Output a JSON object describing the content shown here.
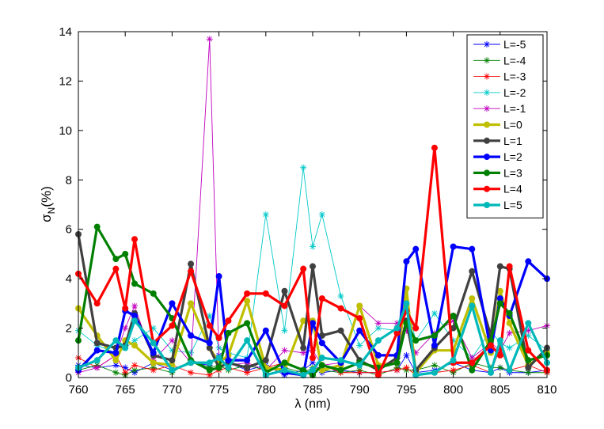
{
  "chart_data": {
    "type": "line",
    "title": "",
    "xlabel": "λ (nm)",
    "ylabel_main": "σ",
    "ylabel_sub": "N",
    "ylabel_tail": "(%)",
    "xlim": [
      760,
      810
    ],
    "ylim": [
      0,
      14
    ],
    "xticks": [
      760,
      765,
      770,
      775,
      780,
      785,
      790,
      795,
      800,
      805,
      810
    ],
    "yticks": [
      0,
      2,
      4,
      6,
      8,
      10,
      12,
      14
    ],
    "grid": false,
    "legend_position": "top-right",
    "x": [
      760,
      762,
      764,
      765,
      766,
      768,
      770,
      772,
      774,
      775,
      776,
      778,
      780,
      782,
      784,
      785,
      786,
      788,
      790,
      792,
      794,
      795,
      796,
      798,
      800,
      802,
      804,
      805,
      806,
      808,
      810
    ],
    "series": [
      {
        "name": "L=-5",
        "color": "#0000ff",
        "style": "thin-star",
        "values": [
          0.5,
          0.4,
          0.5,
          0.4,
          0.2,
          0.6,
          0.3,
          0.6,
          0.5,
          0.9,
          0.6,
          0.3,
          0.5,
          0.1,
          0.3,
          0.6,
          0.2,
          0.3,
          0.2,
          0.2,
          0.3,
          0.9,
          0.2,
          0.3,
          0.6,
          0.3,
          0.2,
          0.4,
          0.2,
          0.2,
          0.3
        ]
      },
      {
        "name": "L=-4",
        "color": "#008000",
        "style": "thin-star",
        "values": [
          0.3,
          0.5,
          0.2,
          0.1,
          0.3,
          0.4,
          0.2,
          0.7,
          0.4,
          0.5,
          0.3,
          0.5,
          0.3,
          0.4,
          0.2,
          0.4,
          0.3,
          0.2,
          0.3,
          0.1,
          0.4,
          0.3,
          0.3,
          0.5,
          0.2,
          0.6,
          0.4,
          0.4,
          0.3,
          0.2,
          0.2
        ]
      },
      {
        "name": "L=-3",
        "color": "#ff0000",
        "style": "thin-star",
        "values": [
          0.8,
          0.4,
          0.9,
          0.2,
          0.5,
          0.3,
          0.5,
          0.2,
          0.1,
          0.3,
          0.4,
          0.2,
          0.4,
          0.6,
          0.3,
          0.1,
          0.5,
          0.2,
          0.2,
          0.2,
          0.3,
          0.4,
          0.1,
          0.2,
          0.3,
          0.5,
          0.2,
          1.2,
          0.3,
          0.5,
          0.2
        ]
      },
      {
        "name": "L=-2",
        "color": "#00c8c8",
        "style": "thin-star",
        "values": [
          1.9,
          1.3,
          1.0,
          1.2,
          1.5,
          2.0,
          1.1,
          1.0,
          2.5,
          1.2,
          1.0,
          0.8,
          6.6,
          1.9,
          8.5,
          5.3,
          6.6,
          3.3,
          1.3,
          2.0,
          1.9,
          3.0,
          1.5,
          2.6,
          1.5,
          0.8,
          1.9,
          1.4,
          1.2,
          1.7,
          1.1
        ]
      },
      {
        "name": "L=-1",
        "color": "#c000c0",
        "style": "thin-star",
        "values": [
          0.2,
          0.4,
          0.9,
          2.0,
          2.9,
          0.7,
          1.5,
          0.6,
          13.7,
          0.7,
          0.5,
          0.6,
          0.3,
          1.1,
          1.0,
          1.1,
          0.5,
          0.6,
          2.9,
          2.2,
          2.2,
          1.9,
          1.0,
          1.8,
          2.3,
          0.8,
          1.4,
          1.1,
          1.8,
          1.9,
          2.1
        ]
      },
      {
        "name": "L=0",
        "color": "#bfbf00",
        "style": "thick-dot",
        "values": [
          2.8,
          1.7,
          0.7,
          1.5,
          1.3,
          0.6,
          0.5,
          3.0,
          1.2,
          0.6,
          0.9,
          3.1,
          0.4,
          0.3,
          2.3,
          2.3,
          0.3,
          0.5,
          2.9,
          0.5,
          0.6,
          3.6,
          0.2,
          1.1,
          1.1,
          3.2,
          1.0,
          3.5,
          2.2,
          0.5,
          1.0
        ]
      },
      {
        "name": "L=1",
        "color": "#404040",
        "style": "thick-dot",
        "values": [
          5.8,
          1.4,
          1.2,
          1.3,
          2.6,
          0.9,
          0.7,
          4.6,
          1.2,
          0.4,
          0.6,
          0.4,
          0.7,
          3.5,
          1.2,
          4.5,
          1.7,
          1.9,
          0.7,
          0.3,
          0.8,
          2.3,
          0.3,
          1.2,
          2.0,
          4.3,
          1.7,
          4.5,
          4.4,
          0.4,
          1.2
        ]
      },
      {
        "name": "L=2",
        "color": "#0000ff",
        "style": "thick-dot",
        "values": [
          0.3,
          1.1,
          1.0,
          2.7,
          2.5,
          1.0,
          3.0,
          1.7,
          1.4,
          4.1,
          0.7,
          0.7,
          1.9,
          0.2,
          0.1,
          2.2,
          1.4,
          0.6,
          1.9,
          0.9,
          0.9,
          4.7,
          5.2,
          1.3,
          5.3,
          5.2,
          1.1,
          3.2,
          2.5,
          4.7,
          4.0
        ]
      },
      {
        "name": "L=3",
        "color": "#008000",
        "style": "thick-dot",
        "values": [
          1.5,
          6.1,
          4.8,
          5.0,
          3.8,
          3.4,
          2.4,
          0.7,
          0.3,
          0.4,
          1.8,
          2.2,
          0.2,
          0.6,
          0.3,
          0.1,
          0.5,
          0.3,
          0.6,
          0.4,
          0.6,
          2.2,
          1.5,
          1.7,
          2.5,
          0.3,
          1.5,
          3.0,
          2.6,
          0.7,
          0.9
        ]
      },
      {
        "name": "L=4",
        "color": "#ff0000",
        "style": "thick-dot",
        "values": [
          4.2,
          3.0,
          4.4,
          2.8,
          5.6,
          1.4,
          2.1,
          4.3,
          2.1,
          1.6,
          2.3,
          3.4,
          3.4,
          2.9,
          4.4,
          0.8,
          3.2,
          2.8,
          2.4,
          0.1,
          1.8,
          2.7,
          2.0,
          9.3,
          0.6,
          0.6,
          1.3,
          0.9,
          4.5,
          1.1,
          0.3
        ]
      },
      {
        "name": "L=5",
        "color": "#00b8b8",
        "style": "thick-dot",
        "values": [
          0.4,
          0.7,
          1.5,
          1.2,
          2.3,
          1.4,
          0.3,
          0.6,
          0.6,
          0.8,
          0.4,
          1.5,
          0.1,
          0.3,
          0.1,
          0.3,
          0.8,
          0.7,
          0.5,
          1.5,
          2.0,
          3.0,
          0.1,
          0.2,
          0.7,
          2.9,
          0.2,
          1.5,
          0.3,
          2.2,
          0.6
        ]
      }
    ]
  }
}
